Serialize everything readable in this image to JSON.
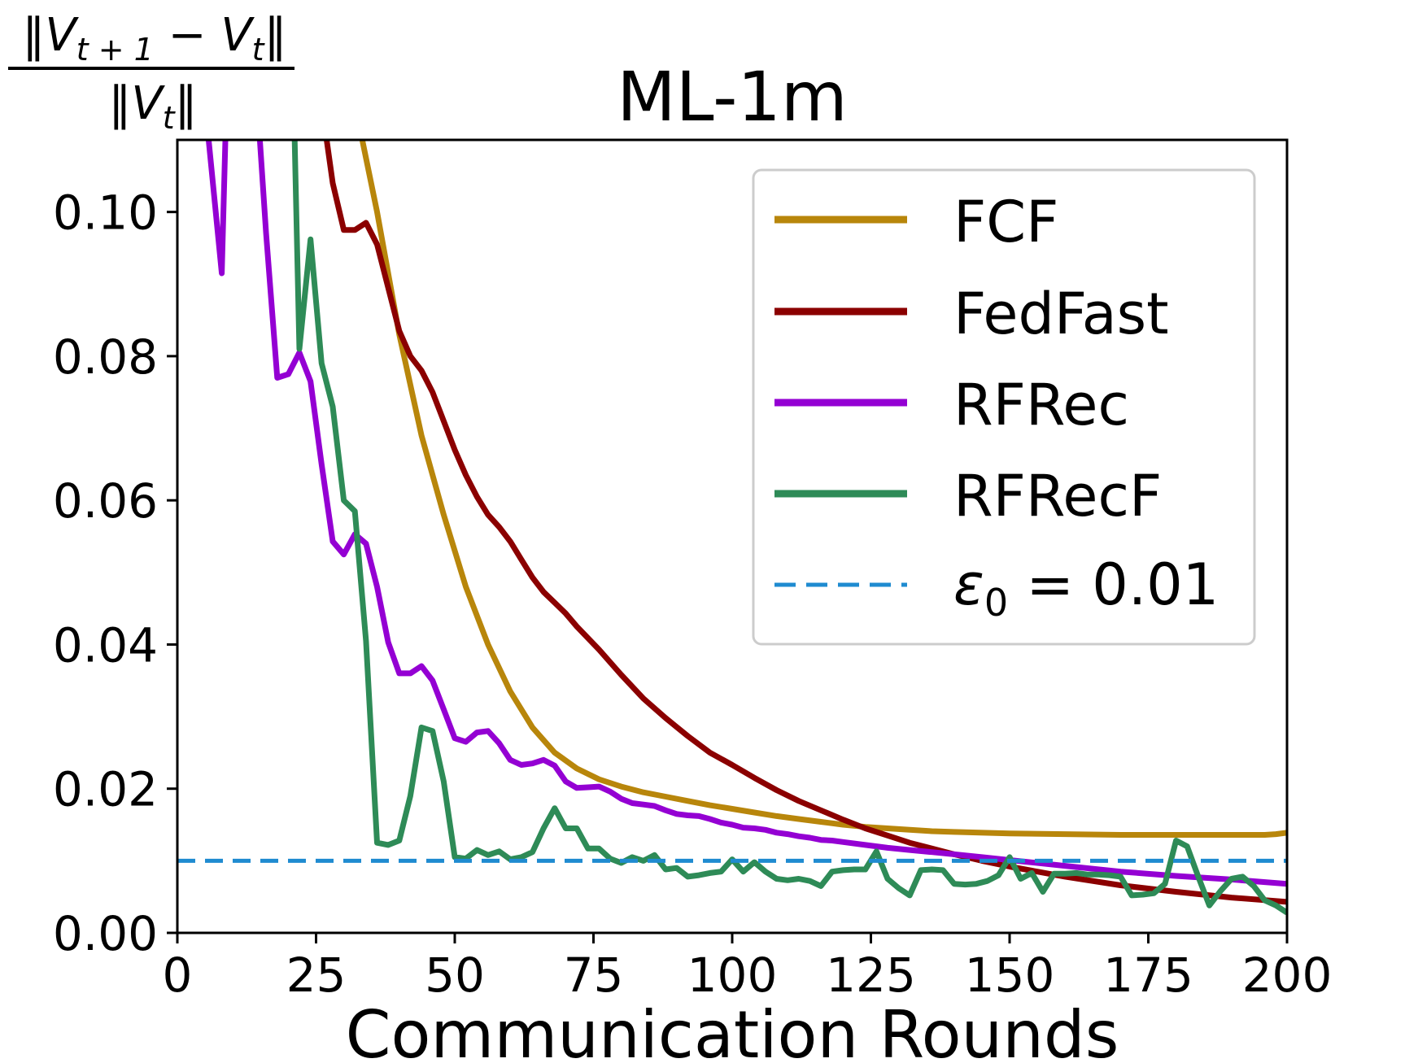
{
  "chart_data": {
    "type": "line",
    "title": "ML-1m",
    "xlabel": "Communication Rounds",
    "ylabel": {
      "numerator_norm_l": "‖",
      "numerator_V1": "V",
      "numerator_sub1": "t + 1",
      "numerator_minus": " − ",
      "numerator_V2": "V",
      "numerator_sub2": "t",
      "numerator_norm_r": "‖",
      "denominator_norm_l": "‖",
      "denominator_V": "V",
      "denominator_sub": "t",
      "denominator_norm_r": "‖"
    },
    "xlim": [
      0,
      200
    ],
    "ylim": [
      0,
      0.11
    ],
    "xticks": [
      0,
      25,
      50,
      75,
      100,
      125,
      150,
      175,
      200
    ],
    "xtick_labels": [
      "0",
      "25",
      "50",
      "75",
      "100",
      "125",
      "150",
      "175",
      "200"
    ],
    "yticks": [
      0,
      0.02,
      0.04,
      0.06,
      0.08,
      0.1
    ],
    "ytick_labels": [
      "0.00",
      "0.02",
      "0.04",
      "0.06",
      "0.08",
      "0.10"
    ],
    "grid": false,
    "legend_position": "top-right",
    "series": [
      {
        "name": "FCF",
        "color": "#b8860b",
        "style": "solid",
        "x": [
          32,
          36,
          40,
          44,
          48,
          52,
          56,
          60,
          64,
          68,
          72,
          76,
          80,
          84,
          88,
          92,
          96,
          100,
          104,
          108,
          112,
          116,
          120,
          124,
          128,
          132,
          136,
          140,
          150,
          160,
          170,
          180,
          190,
          196,
          198,
          200
        ],
        "y": [
          0.115,
          0.1,
          0.083,
          0.069,
          0.058,
          0.048,
          0.04,
          0.0335,
          0.0285,
          0.025,
          0.0228,
          0.0213,
          0.0203,
          0.0195,
          0.0189,
          0.0183,
          0.0177,
          0.0172,
          0.0167,
          0.0162,
          0.0158,
          0.0154,
          0.015,
          0.0147,
          0.0145,
          0.0143,
          0.0141,
          0.014,
          0.0138,
          0.0137,
          0.0136,
          0.0136,
          0.0136,
          0.0136,
          0.0137,
          0.0139
        ]
      },
      {
        "name": "FedFast",
        "color": "#8b0000",
        "style": "solid",
        "x": [
          26,
          28,
          30,
          32,
          34,
          36,
          40,
          42,
          44,
          46,
          48,
          50,
          52,
          54,
          56,
          58,
          60,
          62,
          64,
          66,
          68,
          70,
          72,
          76,
          80,
          84,
          88,
          92,
          96,
          100,
          104,
          108,
          112,
          116,
          120,
          124,
          128,
          132,
          136,
          140,
          145,
          150,
          155,
          160,
          170,
          180,
          190,
          200
        ],
        "y": [
          0.115,
          0.104,
          0.0975,
          0.0975,
          0.0985,
          0.0955,
          0.0835,
          0.08,
          0.078,
          0.075,
          0.071,
          0.067,
          0.0635,
          0.0605,
          0.058,
          0.0563,
          0.0543,
          0.0518,
          0.0493,
          0.0473,
          0.0458,
          0.0443,
          0.0425,
          0.0393,
          0.0358,
          0.0325,
          0.0298,
          0.0273,
          0.025,
          0.0233,
          0.0215,
          0.0198,
          0.0183,
          0.017,
          0.0157,
          0.0145,
          0.0135,
          0.0125,
          0.0117,
          0.0109,
          0.01,
          0.0092,
          0.0085,
          0.0078,
          0.0066,
          0.0057,
          0.0049,
          0.0043
        ]
      },
      {
        "name": "RFRec",
        "color": "#9400d3",
        "style": "solid",
        "x": [
          5,
          8,
          9,
          14,
          16,
          18,
          20,
          22,
          24,
          26,
          28,
          30,
          32,
          34,
          36,
          38,
          40,
          42,
          44,
          46,
          48,
          50,
          52,
          54,
          56,
          58,
          60,
          62,
          64,
          66,
          68,
          70,
          72,
          74,
          76,
          78,
          80,
          82,
          84,
          86,
          88,
          90,
          92,
          94,
          96,
          98,
          100,
          102,
          104,
          106,
          108,
          110,
          112,
          114,
          116,
          118,
          120,
          124,
          128,
          132,
          136,
          140,
          145,
          150,
          160,
          170,
          180,
          190,
          200
        ],
        "y": [
          0.115,
          0.0915,
          0.12,
          0.12,
          0.097,
          0.077,
          0.0775,
          0.0805,
          0.0765,
          0.065,
          0.0543,
          0.0525,
          0.0553,
          0.054,
          0.048,
          0.0403,
          0.036,
          0.036,
          0.037,
          0.035,
          0.031,
          0.027,
          0.0265,
          0.0278,
          0.028,
          0.0263,
          0.024,
          0.0233,
          0.0235,
          0.024,
          0.0232,
          0.021,
          0.0201,
          0.0202,
          0.0203,
          0.0196,
          0.0186,
          0.018,
          0.0178,
          0.0176,
          0.017,
          0.0165,
          0.0163,
          0.0162,
          0.0158,
          0.0153,
          0.015,
          0.0146,
          0.0145,
          0.0143,
          0.0139,
          0.0137,
          0.0134,
          0.0132,
          0.0129,
          0.0128,
          0.0126,
          0.0122,
          0.0118,
          0.0115,
          0.0112,
          0.0109,
          0.0105,
          0.0101,
          0.0093,
          0.0085,
          0.0079,
          0.0074,
          0.0068
        ]
      },
      {
        "name": "RFRecF",
        "color": "#2e8b57",
        "style": "solid",
        "x": [
          21,
          22,
          24,
          26,
          28,
          30,
          32,
          34,
          36,
          38,
          40,
          42,
          44,
          46,
          48,
          50,
          52,
          54,
          56,
          58,
          60,
          62,
          64,
          66,
          68,
          70,
          72,
          74,
          76,
          78,
          80,
          82,
          84,
          86,
          88,
          90,
          92,
          94,
          96,
          98,
          100,
          102,
          104,
          106,
          108,
          110,
          112,
          114,
          116,
          118,
          120,
          122,
          124,
          126,
          128,
          130,
          132,
          134,
          136,
          138,
          140,
          142,
          144,
          146,
          148,
          150,
          152,
          154,
          156,
          158,
          160,
          162,
          164,
          166,
          168,
          170,
          172,
          174,
          176,
          178,
          180,
          182,
          184,
          186,
          188,
          190,
          192,
          194,
          196,
          198,
          200
        ],
        "y": [
          0.115,
          0.081,
          0.0962,
          0.079,
          0.073,
          0.06,
          0.0585,
          0.0405,
          0.0125,
          0.0122,
          0.0128,
          0.019,
          0.0285,
          0.028,
          0.021,
          0.0105,
          0.0103,
          0.0115,
          0.0108,
          0.0113,
          0.0102,
          0.0105,
          0.0112,
          0.0145,
          0.0173,
          0.0145,
          0.0145,
          0.0117,
          0.0117,
          0.0103,
          0.0097,
          0.0105,
          0.01,
          0.0108,
          0.0088,
          0.009,
          0.0078,
          0.008,
          0.0083,
          0.0085,
          0.0102,
          0.0085,
          0.0098,
          0.0085,
          0.0075,
          0.0073,
          0.0075,
          0.0072,
          0.0065,
          0.0085,
          0.0087,
          0.0088,
          0.0088,
          0.0113,
          0.0075,
          0.0062,
          0.0052,
          0.0087,
          0.0088,
          0.0087,
          0.0068,
          0.0067,
          0.0068,
          0.0072,
          0.008,
          0.0105,
          0.0075,
          0.0083,
          0.0057,
          0.0082,
          0.0082,
          0.0083,
          0.0081,
          0.0081,
          0.008,
          0.0078,
          0.0052,
          0.0053,
          0.0055,
          0.0068,
          0.0128,
          0.012,
          0.0078,
          0.0038,
          0.0058,
          0.0075,
          0.0078,
          0.0065,
          0.0045,
          0.0038,
          0.0028
        ]
      },
      {
        "name": "ε₀ = 0.01",
        "color": "#1f8bd0",
        "style": "dashed",
        "x": [
          0,
          200
        ],
        "y": [
          0.01,
          0.01
        ]
      }
    ],
    "legend": {
      "entries": [
        "FCF",
        "FedFast",
        "RFRec",
        "RFRecF"
      ],
      "eps_symbol": "ε",
      "eps_subscript": "0",
      "eps_rest": " = 0.01"
    }
  }
}
